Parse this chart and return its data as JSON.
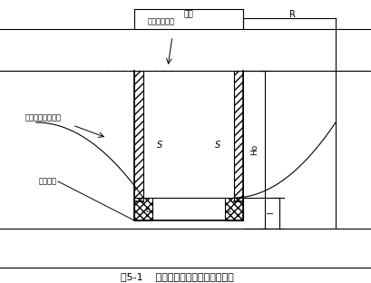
{
  "title": "图5-1    无压非完整井涌水量计算简图",
  "bg_color": "#ffffff",
  "label_yuandi": "原地下水位线",
  "label_jiakeng": "基坑",
  "label_R": "R",
  "label_jiangdi": "降低后地下水位线",
  "label_butou": "不透水层",
  "label_Ho": "Ho",
  "label_l": "l"
}
